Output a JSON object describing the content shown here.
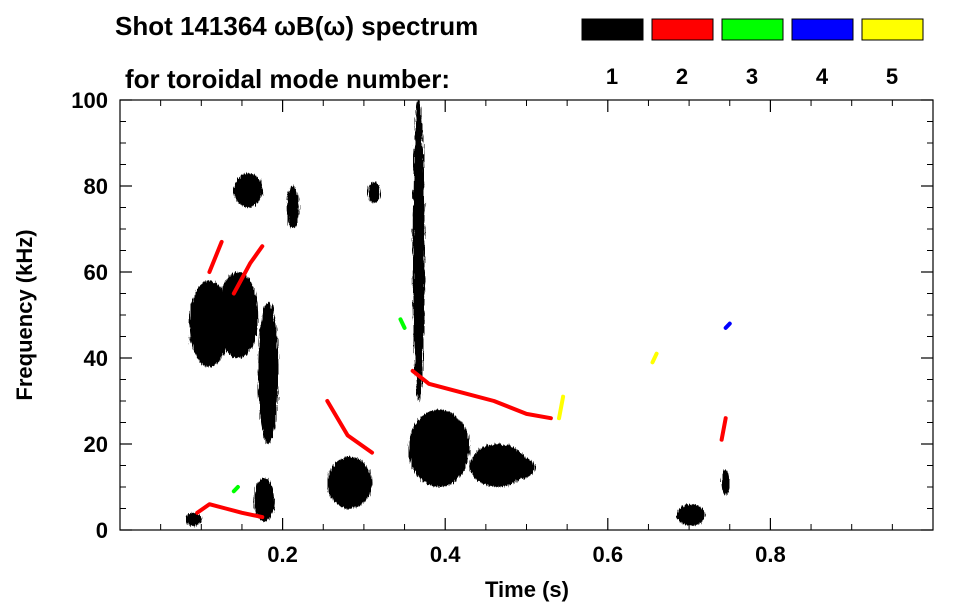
{
  "chart_data": {
    "type": "heatmap",
    "title_line1": "Shot 141364 ωB(ω) spectrum",
    "title_line2": "for toroidal mode number:",
    "xlabel": "Time (s)",
    "ylabel": "Frequency (kHz)",
    "xlim": [
      0.0,
      1.0
    ],
    "ylim": [
      0,
      100
    ],
    "x_ticks": [
      0.2,
      0.4,
      0.6,
      0.8
    ],
    "x_tick_labels": [
      "0.2",
      "0.4",
      "0.6",
      "0.8"
    ],
    "y_ticks": [
      0,
      20,
      40,
      60,
      80,
      100
    ],
    "y_tick_labels": [
      "0",
      "20",
      "40",
      "60",
      "80",
      "100"
    ],
    "legend": [
      {
        "label": "1",
        "color": "#000000"
      },
      {
        "label": "2",
        "color": "#ff0000"
      },
      {
        "label": "3",
        "color": "#00ff00"
      },
      {
        "label": "4",
        "color": "#0000ff"
      },
      {
        "label": "5",
        "color": "#ffff00"
      }
    ],
    "blobs": [
      {
        "mode": 1,
        "t": [
          0.085,
          0.135
        ],
        "f": [
          38,
          58
        ]
      },
      {
        "mode": 1,
        "t": [
          0.12,
          0.17
        ],
        "f": [
          40,
          60
        ]
      },
      {
        "mode": 1,
        "t": [
          0.17,
          0.195
        ],
        "f": [
          20,
          53
        ]
      },
      {
        "mode": 1,
        "t": [
          0.14,
          0.175
        ],
        "f": [
          75,
          83
        ]
      },
      {
        "mode": 1,
        "t": [
          0.205,
          0.22
        ],
        "f": [
          70,
          80
        ]
      },
      {
        "mode": 1,
        "t": [
          0.165,
          0.19
        ],
        "f": [
          2,
          12
        ]
      },
      {
        "mode": 1,
        "t": [
          0.08,
          0.1
        ],
        "f": [
          1,
          4
        ]
      },
      {
        "mode": 1,
        "t": [
          0.255,
          0.31
        ],
        "f": [
          5,
          17
        ]
      },
      {
        "mode": 1,
        "t": [
          0.305,
          0.32
        ],
        "f": [
          76,
          81
        ]
      },
      {
        "mode": 1,
        "t": [
          0.355,
          0.43
        ],
        "f": [
          10,
          28
        ]
      },
      {
        "mode": 1,
        "t": [
          0.43,
          0.5
        ],
        "f": [
          10,
          20
        ]
      },
      {
        "mode": 1,
        "t": [
          0.475,
          0.51
        ],
        "f": [
          12,
          17
        ]
      },
      {
        "mode": 1,
        "t": [
          0.36,
          0.375
        ],
        "f": [
          30,
          100
        ]
      },
      {
        "mode": 1,
        "t": [
          0.74,
          0.75
        ],
        "f": [
          8,
          14
        ]
      },
      {
        "mode": 1,
        "t": [
          0.685,
          0.72
        ],
        "f": [
          1,
          6
        ]
      }
    ],
    "lines": [
      {
        "mode": 2,
        "points": [
          [
            0.11,
            60
          ],
          [
            0.125,
            67
          ]
        ]
      },
      {
        "mode": 2,
        "points": [
          [
            0.14,
            55
          ],
          [
            0.16,
            62
          ],
          [
            0.175,
            66
          ]
        ]
      },
      {
        "mode": 2,
        "points": [
          [
            0.255,
            30
          ],
          [
            0.28,
            22
          ],
          [
            0.31,
            18
          ]
        ]
      },
      {
        "mode": 2,
        "points": [
          [
            0.36,
            37
          ],
          [
            0.38,
            34
          ],
          [
            0.42,
            32
          ],
          [
            0.46,
            30
          ],
          [
            0.5,
            27
          ],
          [
            0.53,
            26
          ]
        ]
      },
      {
        "mode": 2,
        "points": [
          [
            0.095,
            4
          ],
          [
            0.11,
            6
          ],
          [
            0.13,
            5
          ],
          [
            0.15,
            4
          ],
          [
            0.175,
            3
          ]
        ]
      },
      {
        "mode": 2,
        "points": [
          [
            0.74,
            21
          ],
          [
            0.745,
            26
          ]
        ]
      },
      {
        "mode": 3,
        "points": [
          [
            0.345,
            49
          ],
          [
            0.35,
            47
          ]
        ]
      },
      {
        "mode": 3,
        "points": [
          [
            0.14,
            9
          ],
          [
            0.145,
            10
          ]
        ]
      },
      {
        "mode": 4,
        "points": [
          [
            0.745,
            47
          ],
          [
            0.75,
            48
          ]
        ]
      },
      {
        "mode": 5,
        "points": [
          [
            0.54,
            26
          ],
          [
            0.545,
            31
          ]
        ]
      },
      {
        "mode": 5,
        "points": [
          [
            0.655,
            39
          ],
          [
            0.66,
            41
          ]
        ]
      }
    ]
  }
}
